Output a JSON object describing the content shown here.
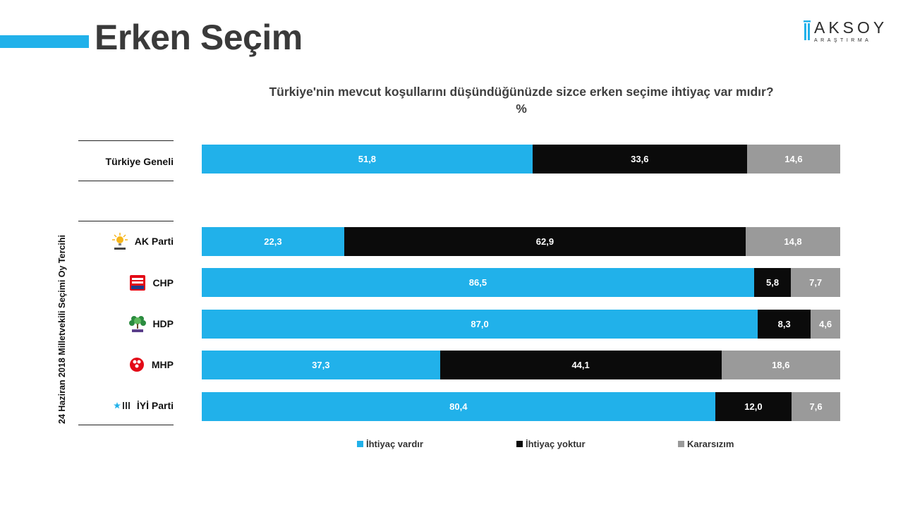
{
  "header": {
    "title": "Erken Seçim",
    "brand": {
      "name": "AKSOY",
      "sub": "ARAŞTIRMA"
    }
  },
  "colors": {
    "accent": "#21b1ea",
    "yes": "#21b1ea",
    "no": "#0b0b0b",
    "undecided": "#9a9a9a"
  },
  "side_label": "24 Haziran 2018 Milletvekili Seçimi Oy Tercihi",
  "chart_data": {
    "type": "bar",
    "orientation": "horizontal",
    "stacked": true,
    "title": "Türkiye'nin mevcut koşullarını düşündüğünüzde sizce erken seçime ihtiyaç var mıdır?",
    "subtitle": "%",
    "categories": [
      "Türkiye Geneli",
      "AK Parti",
      "CHP",
      "HDP",
      "MHP",
      "İYİ Parti"
    ],
    "series": [
      {
        "name": "İhtiyaç vardır",
        "values": [
          51.8,
          22.3,
          86.5,
          87.0,
          37.3,
          80.4
        ],
        "labels": [
          "51,8",
          "22,3",
          "86,5",
          "87,0",
          "37,3",
          "80,4"
        ]
      },
      {
        "name": "İhtiyaç yoktur",
        "values": [
          33.6,
          62.9,
          5.8,
          8.3,
          44.1,
          12.0
        ],
        "labels": [
          "33,6",
          "62,9",
          "5,8",
          "8,3",
          "44,1",
          "12,0"
        ]
      },
      {
        "name": "Kararsızım",
        "values": [
          14.6,
          14.8,
          7.7,
          4.6,
          18.6,
          7.6
        ],
        "labels": [
          "14,6",
          "14,8",
          "7,7",
          "4,6",
          "18,6",
          "7,6"
        ]
      }
    ],
    "xlim": [
      0,
      100
    ],
    "legend_position": "bottom",
    "grid": false
  }
}
